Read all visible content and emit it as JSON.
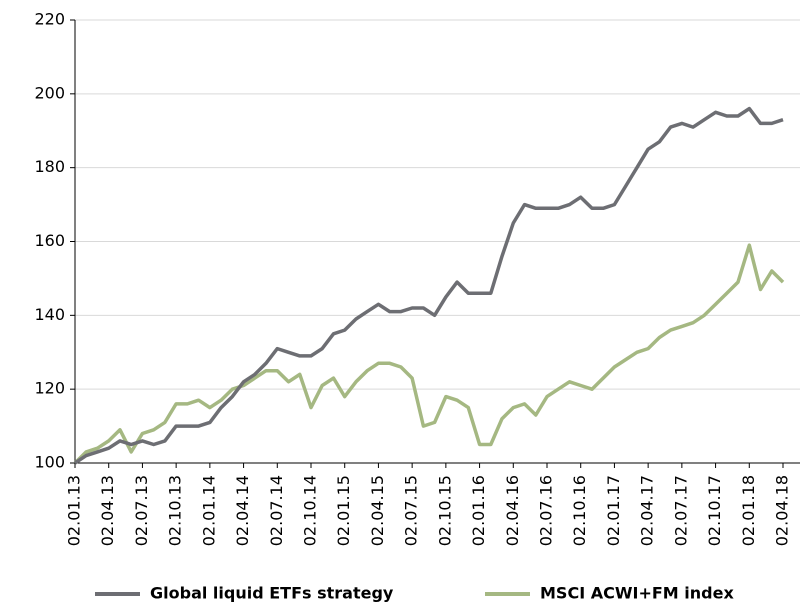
{
  "chart_data": {
    "type": "line",
    "categories": [
      "02.01.13",
      null,
      null,
      "02.04.13",
      null,
      null,
      "02.07.13",
      null,
      null,
      "02.10.13",
      null,
      null,
      "02.01.14",
      null,
      null,
      "02.04.14",
      null,
      null,
      "02.07.14",
      null,
      null,
      "02.10.14",
      null,
      null,
      "02.01.15",
      null,
      null,
      "02.04.15",
      null,
      null,
      "02.07.15",
      null,
      null,
      "02.10.15",
      null,
      null,
      "02.01.16",
      null,
      null,
      "02.04.16",
      null,
      null,
      "02.07.16",
      null,
      null,
      "02.10.16",
      null,
      null,
      "02.01.17",
      null,
      null,
      "02.04.17",
      null,
      null,
      "02.07.17",
      null,
      null,
      "02.10.17",
      null,
      null,
      "02.01.18",
      null,
      null,
      "02.04.18"
    ],
    "series": [
      {
        "name": "Global liquid ETFs strategy",
        "color": "#6d6e73",
        "values": [
          100,
          102,
          103,
          104,
          106,
          105,
          106,
          105,
          106,
          110,
          110,
          110,
          111,
          115,
          118,
          122,
          124,
          127,
          131,
          130,
          129,
          129,
          131,
          135,
          136,
          139,
          141,
          143,
          141,
          141,
          142,
          142,
          140,
          145,
          149,
          146,
          146,
          146,
          156,
          165,
          170,
          169,
          169,
          169,
          170,
          172,
          169,
          169,
          170,
          175,
          180,
          185,
          187,
          191,
          192,
          191,
          193,
          195,
          194,
          194,
          196,
          192,
          192,
          193
        ]
      },
      {
        "name": "MSCI ACWI+FM index",
        "color": "#a5b882",
        "values": [
          100,
          103,
          104,
          106,
          109,
          103,
          108,
          109,
          111,
          116,
          116,
          117,
          115,
          117,
          120,
          121,
          123,
          125,
          125,
          122,
          124,
          115,
          121,
          123,
          118,
          122,
          125,
          127,
          127,
          126,
          123,
          110,
          111,
          118,
          117,
          115,
          105,
          105,
          112,
          115,
          116,
          113,
          118,
          120,
          122,
          121,
          120,
          123,
          126,
          128,
          130,
          131,
          134,
          136,
          137,
          138,
          140,
          143,
          146,
          149,
          159,
          147,
          152,
          149
        ]
      }
    ],
    "ylim": [
      100,
      220
    ],
    "yticks": [
      100,
      120,
      140,
      160,
      180,
      200,
      220
    ],
    "grid": true
  }
}
